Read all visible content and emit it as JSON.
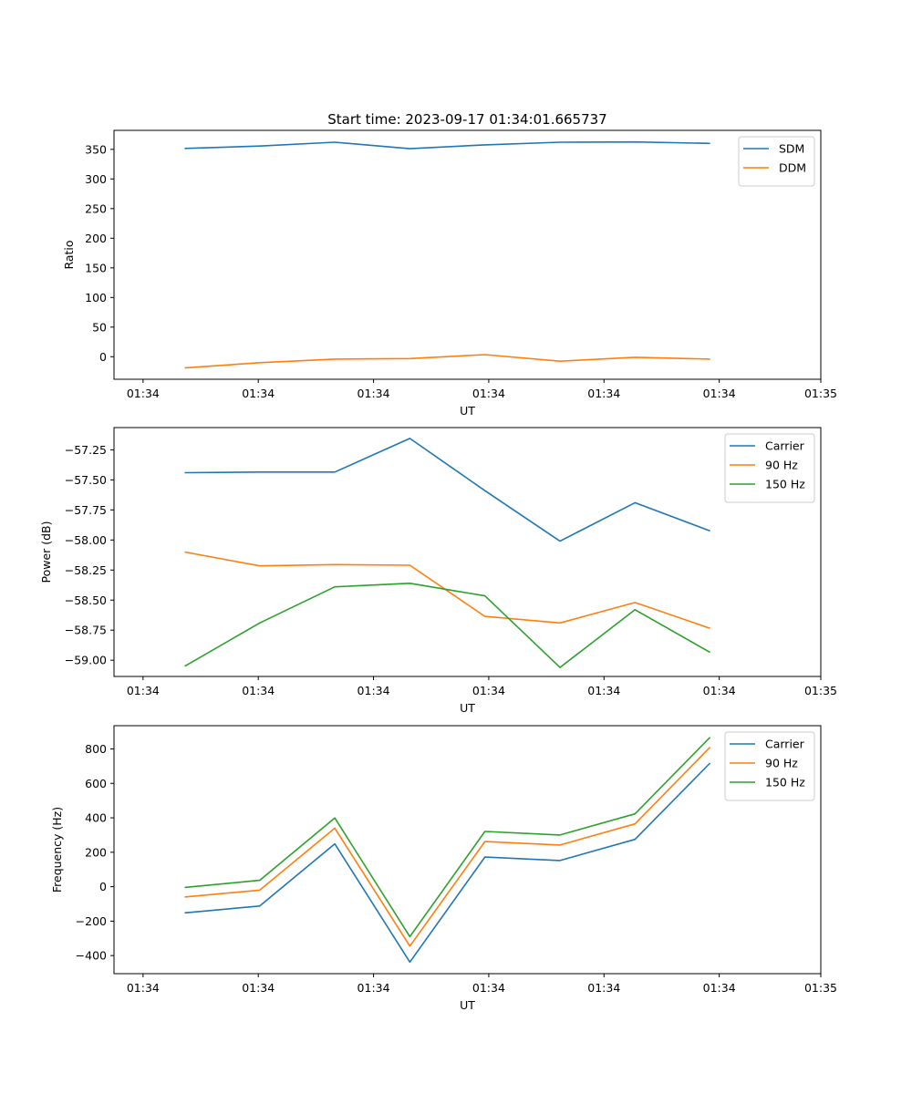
{
  "figure_title": "Start time: 2023-09-17 01:34:01.665737",
  "colors": {
    "blue": "#1f77b4",
    "orange": "#ff7f0e",
    "green": "#2ca02c"
  },
  "chart_data": [
    {
      "type": "line",
      "title": "Start time: 2023-09-17 01:34:01.665737",
      "xlabel": "UT",
      "ylabel": "Ratio",
      "x_ticks": [
        "01:34",
        "01:34",
        "01:34",
        "01:34",
        "01:34",
        "01:34",
        "01:34",
        "01:35"
      ],
      "x_index": [
        1,
        2,
        3,
        4,
        5,
        6,
        7,
        8
      ],
      "xlim": [
        0,
        9.2
      ],
      "ylim": [
        -38,
        382
      ],
      "yticks": [
        0,
        50,
        100,
        150,
        200,
        250,
        300,
        350
      ],
      "legend_position": "top-right",
      "series": [
        {
          "name": "SDM",
          "color": "#1f77b4",
          "values": [
            351.5,
            355.5,
            362,
            351,
            357.5,
            362,
            362.5,
            360
          ]
        },
        {
          "name": "DDM",
          "color": "#ff7f0e",
          "values": [
            -19,
            -10,
            -4,
            -3,
            3.5,
            -7.5,
            -1,
            -4
          ]
        }
      ]
    },
    {
      "type": "line",
      "xlabel": "UT",
      "ylabel": "Power (dB)",
      "x_ticks": [
        "01:34",
        "01:34",
        "01:34",
        "01:34",
        "01:34",
        "01:34",
        "01:34",
        "01:35"
      ],
      "x_index": [
        1,
        2,
        3,
        4,
        5,
        6,
        7,
        8
      ],
      "xlim": [
        0,
        9.2
      ],
      "ylim": [
        -59.135,
        -57.065
      ],
      "yticks": [
        -59.0,
        -58.75,
        -58.5,
        -58.25,
        -58.0,
        -57.75,
        -57.5,
        -57.25
      ],
      "ytick_labels": [
        "−59.00",
        "−58.75",
        "−58.50",
        "−58.25",
        "−58.00",
        "−57.75",
        "−57.50",
        "−57.25"
      ],
      "legend_position": "top-right",
      "series": [
        {
          "name": "Carrier",
          "color": "#1f77b4",
          "values": [
            -57.44,
            -57.435,
            -57.435,
            -57.155,
            -57.59,
            -58.01,
            -57.69,
            -57.925
          ]
        },
        {
          "name": "90 Hz",
          "color": "#ff7f0e",
          "values": [
            -58.1,
            -58.215,
            -58.205,
            -58.21,
            -58.635,
            -58.69,
            -58.52,
            -58.735
          ]
        },
        {
          "name": "150 Hz",
          "color": "#2ca02c",
          "values": [
            -59.05,
            -58.69,
            -58.39,
            -58.36,
            -58.465,
            -59.06,
            -58.58,
            -58.935
          ]
        }
      ]
    },
    {
      "type": "line",
      "xlabel": "UT",
      "ylabel": "Frequency (Hz)",
      "x_ticks": [
        "01:34",
        "01:34",
        "01:34",
        "01:34",
        "01:34",
        "01:34",
        "01:34",
        "01:35"
      ],
      "x_index": [
        1,
        2,
        3,
        4,
        5,
        6,
        7,
        8
      ],
      "xlim": [
        0,
        9.2
      ],
      "ylim": [
        -505,
        935
      ],
      "yticks": [
        -400,
        -200,
        0,
        200,
        400,
        600,
        800
      ],
      "ytick_labels": [
        "−400",
        "−200",
        "0",
        "200",
        "400",
        "600",
        "800"
      ],
      "legend_position": "top-right",
      "series": [
        {
          "name": "Carrier",
          "color": "#1f77b4",
          "values": [
            -152,
            -112,
            249,
            -438,
            172,
            152,
            275,
            718
          ]
        },
        {
          "name": "90 Hz",
          "color": "#ff7f0e",
          "values": [
            -60,
            -20,
            340,
            -345,
            262,
            242,
            365,
            810
          ]
        },
        {
          "name": "150 Hz",
          "color": "#2ca02c",
          "values": [
            -4,
            37,
            399,
            -290,
            321,
            300,
            423,
            868
          ]
        }
      ]
    }
  ]
}
